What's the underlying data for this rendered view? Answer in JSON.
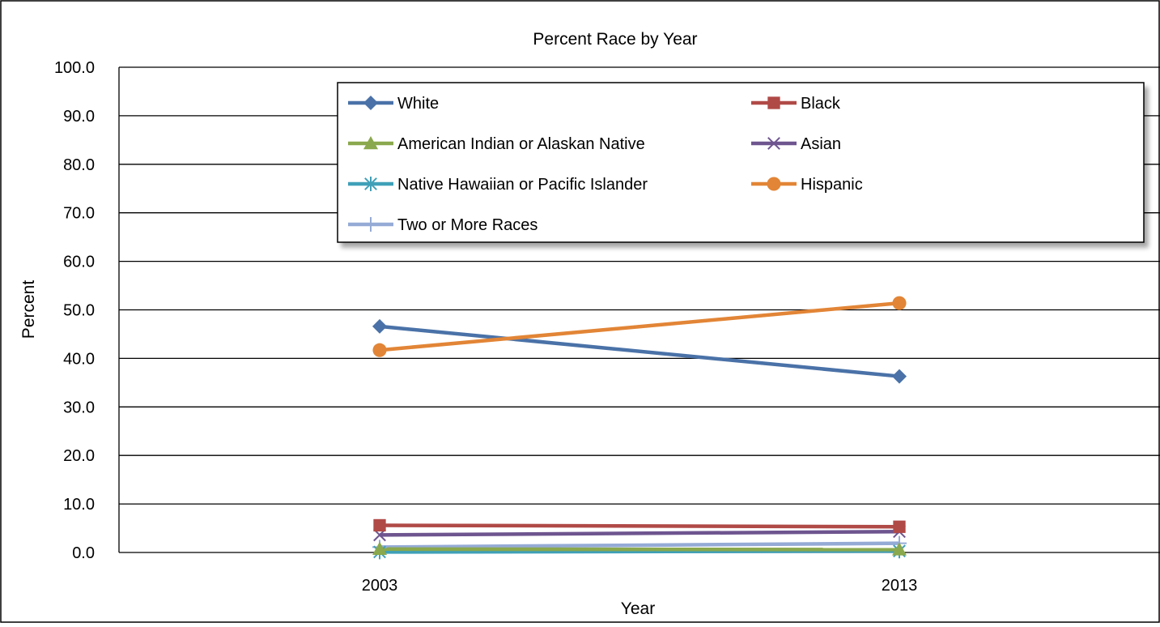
{
  "chart_data": {
    "type": "line",
    "title": "Percent Race by Year",
    "xlabel": "Year",
    "ylabel": "Percent",
    "ylim": [
      0,
      100
    ],
    "y_ticks": [
      "0.0",
      "10.0",
      "20.0",
      "30.0",
      "40.0",
      "50.0",
      "60.0",
      "70.0",
      "80.0",
      "90.0",
      "100.0"
    ],
    "categories": [
      "2003",
      "2013"
    ],
    "grid": true,
    "legend_position": "top",
    "series": [
      {
        "name": "White",
        "values": [
          46.6,
          36.3
        ],
        "color": "#4a72a8",
        "marker": "diamond"
      },
      {
        "name": "Black",
        "values": [
          5.6,
          5.3
        ],
        "color": "#b04a47",
        "marker": "square"
      },
      {
        "name": "American Indian or Alaskan Native",
        "values": [
          0.7,
          0.6
        ],
        "color": "#8aa84d",
        "marker": "triangle"
      },
      {
        "name": "Asian",
        "values": [
          3.6,
          4.3
        ],
        "color": "#6e558f",
        "marker": "x"
      },
      {
        "name": "Native Hawaiian or Pacific Islander",
        "values": [
          0.1,
          0.3
        ],
        "color": "#3fa0b8",
        "marker": "star"
      },
      {
        "name": "Hispanic",
        "values": [
          41.7,
          51.4
        ],
        "color": "#e28536",
        "marker": "circle"
      },
      {
        "name": "Two or More Races",
        "values": [
          1.1,
          1.9
        ],
        "color": "#95abd6",
        "marker": "plus"
      }
    ]
  }
}
